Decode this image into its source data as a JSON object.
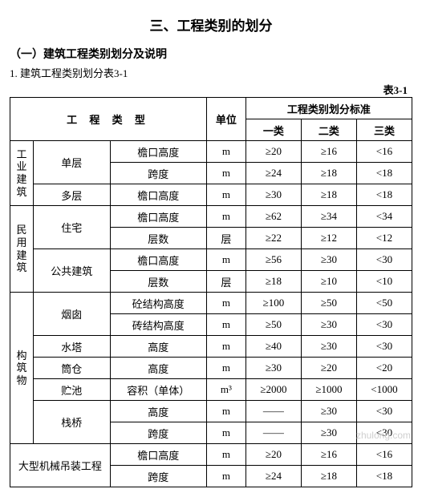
{
  "title": "三、工程类别的划分",
  "section_heading": "（一）建筑工程类别划分及说明",
  "subsection": "1. 建筑工程类别划分表3-1",
  "table_label": "表3-1",
  "headers": {
    "engineering_type": "工 程 类 型",
    "unit": "单位",
    "classification_std": "工程类别划分标准",
    "class1": "一类",
    "class2": "二类",
    "class3": "三类"
  },
  "groups": [
    {
      "group": "工业建筑",
      "rows": [
        {
          "cat": "单层",
          "catspan": 2,
          "metric": "檐口高度",
          "unit": "m",
          "c1": "≥20",
          "c2": "≥16",
          "c3": "<16"
        },
        {
          "cat": "",
          "catspan": 0,
          "metric": "跨度",
          "unit": "m",
          "c1": "≥24",
          "c2": "≥18",
          "c3": "<18"
        },
        {
          "cat": "多层",
          "catspan": 1,
          "metric": "檐口高度",
          "unit": "m",
          "c1": "≥30",
          "c2": "≥18",
          "c3": "<18"
        }
      ]
    },
    {
      "group": "民用建筑",
      "rows": [
        {
          "cat": "住宅",
          "catspan": 2,
          "metric": "檐口高度",
          "unit": "m",
          "c1": "≥62",
          "c2": "≥34",
          "c3": "<34"
        },
        {
          "cat": "",
          "catspan": 0,
          "metric": "层数",
          "unit": "层",
          "c1": "≥22",
          "c2": "≥12",
          "c3": "<12"
        },
        {
          "cat": "公共建筑",
          "catspan": 2,
          "metric": "檐口高度",
          "unit": "m",
          "c1": "≥56",
          "c2": "≥30",
          "c3": "<30"
        },
        {
          "cat": "",
          "catspan": 0,
          "metric": "层数",
          "unit": "层",
          "c1": "≥18",
          "c2": "≥10",
          "c3": "<10"
        }
      ]
    },
    {
      "group": "构筑物",
      "rows": [
        {
          "cat": "烟囱",
          "catspan": 2,
          "metric": "砼结构高度",
          "unit": "m",
          "c1": "≥100",
          "c2": "≥50",
          "c3": "<50"
        },
        {
          "cat": "",
          "catspan": 0,
          "metric": "砖结构高度",
          "unit": "m",
          "c1": "≥50",
          "c2": "≥30",
          "c3": "<30"
        },
        {
          "cat": "水塔",
          "catspan": 1,
          "metric": "高度",
          "unit": "m",
          "c1": "≥40",
          "c2": "≥30",
          "c3": "<30"
        },
        {
          "cat": "筒仓",
          "catspan": 1,
          "metric": "高度",
          "unit": "m",
          "c1": "≥30",
          "c2": "≥20",
          "c3": "<20"
        },
        {
          "cat": "贮池",
          "catspan": 1,
          "metric": "容积（单体）",
          "unit": "m³",
          "c1": "≥2000",
          "c2": "≥1000",
          "c3": "<1000"
        },
        {
          "cat": "栈桥",
          "catspan": 2,
          "metric": "高度",
          "unit": "m",
          "c1": "——",
          "c2": "≥30",
          "c3": "<30"
        },
        {
          "cat": "",
          "catspan": 0,
          "metric": "跨度",
          "unit": "m",
          "c1": "——",
          "c2": "≥30",
          "c3": "<30"
        }
      ]
    },
    {
      "group": "",
      "rows": [
        {
          "cat": "大型机械吊装工程",
          "catspan": 2,
          "fullwidth": true,
          "metric": "檐口高度",
          "unit": "m",
          "c1": "≥20",
          "c2": "≥16",
          "c3": "<16"
        },
        {
          "cat": "",
          "catspan": 0,
          "fullwidth": true,
          "metric": "跨度",
          "unit": "m",
          "c1": "≥24",
          "c2": "≥18",
          "c3": "<18"
        }
      ]
    }
  ],
  "watermark": "zhulong.com",
  "colors": {
    "text": "#000000",
    "background": "#ffffff",
    "border": "#000000",
    "watermark": "#cfcfcf"
  },
  "fontsize": {
    "title": 17,
    "sub1": 14,
    "body": 13
  }
}
